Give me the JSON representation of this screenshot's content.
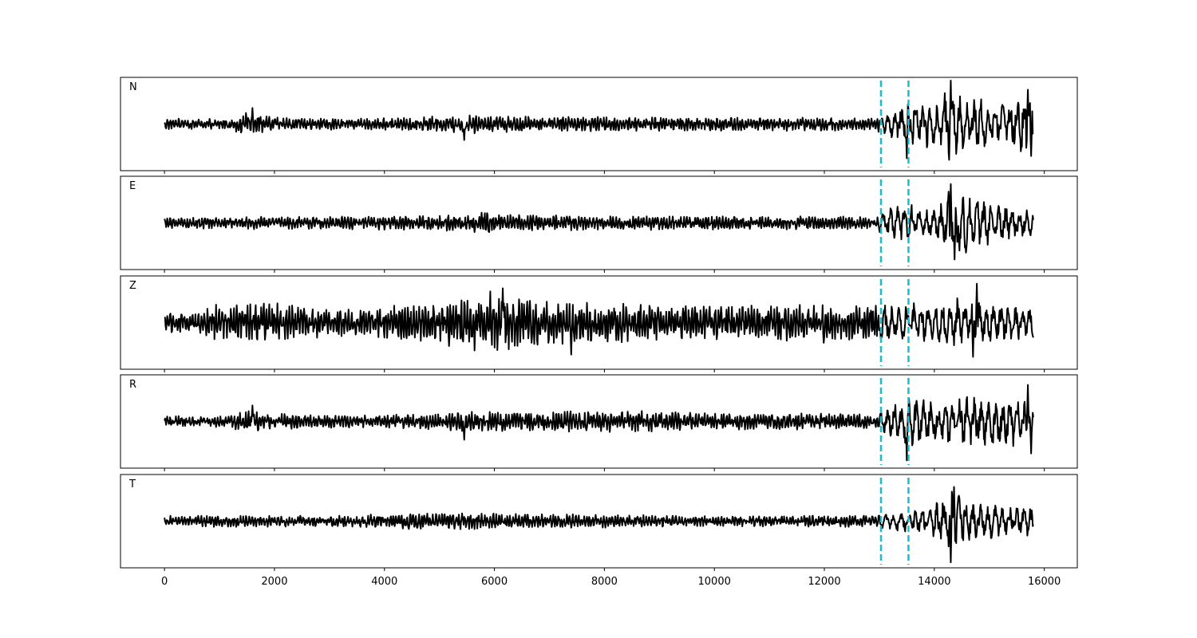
{
  "chart_data": {
    "type": "line",
    "xlim": [
      -800,
      16600
    ],
    "ylim": [
      -1.0,
      1.0
    ],
    "x_ticks": [
      0,
      2000,
      4000,
      6000,
      8000,
      10000,
      12000,
      14000,
      16000
    ],
    "x_tick_labels": [
      "0",
      "2000",
      "4000",
      "6000",
      "8000",
      "10000",
      "12000",
      "14000",
      "16000"
    ],
    "x_range": [
      0,
      15800
    ],
    "markers": [
      13030,
      13530
    ],
    "marker_color": "#17becf",
    "trace_color": "#000000",
    "grid": false,
    "panels": [
      {
        "label": "N",
        "envelope": [
          [
            0,
            0.12
          ],
          [
            1200,
            0.12
          ],
          [
            1400,
            0.22
          ],
          [
            1600,
            0.28
          ],
          [
            1800,
            0.18
          ],
          [
            2400,
            0.13
          ],
          [
            3500,
            0.13
          ],
          [
            4500,
            0.16
          ],
          [
            5500,
            0.22
          ],
          [
            6200,
            0.18
          ],
          [
            8000,
            0.16
          ],
          [
            10000,
            0.16
          ],
          [
            12000,
            0.16
          ],
          [
            12900,
            0.14
          ],
          [
            13100,
            0.22
          ],
          [
            13400,
            0.45
          ],
          [
            13600,
            0.55
          ],
          [
            14000,
            0.5
          ],
          [
            14300,
            0.85
          ],
          [
            14600,
            0.55
          ],
          [
            15000,
            0.55
          ],
          [
            15400,
            0.5
          ],
          [
            15700,
            0.75
          ],
          [
            15800,
            0.7
          ]
        ],
        "spikes": [
          [
            1600,
            0.35
          ],
          [
            5450,
            -0.35
          ],
          [
            13500,
            -0.75
          ],
          [
            14300,
            0.95
          ],
          [
            15700,
            0.75
          ],
          [
            15760,
            -0.7
          ]
        ]
      },
      {
        "label": "E",
        "envelope": [
          [
            0,
            0.12
          ],
          [
            1500,
            0.14
          ],
          [
            3000,
            0.14
          ],
          [
            4500,
            0.17
          ],
          [
            5500,
            0.18
          ],
          [
            5900,
            0.26
          ],
          [
            6200,
            0.18
          ],
          [
            8000,
            0.16
          ],
          [
            10000,
            0.15
          ],
          [
            12000,
            0.15
          ],
          [
            12900,
            0.14
          ],
          [
            13200,
            0.35
          ],
          [
            13500,
            0.42
          ],
          [
            14000,
            0.28
          ],
          [
            14300,
            0.85
          ],
          [
            14500,
            0.7
          ],
          [
            15000,
            0.5
          ],
          [
            15400,
            0.4
          ],
          [
            15800,
            0.3
          ]
        ],
        "spikes": [
          [
            14300,
            0.85
          ],
          [
            14370,
            -0.8
          ]
        ]
      },
      {
        "label": "Z",
        "envelope": [
          [
            0,
            0.22
          ],
          [
            600,
            0.3
          ],
          [
            1000,
            0.45
          ],
          [
            1500,
            0.4
          ],
          [
            2200,
            0.45
          ],
          [
            3000,
            0.3
          ],
          [
            4000,
            0.35
          ],
          [
            5000,
            0.5
          ],
          [
            5500,
            0.6
          ],
          [
            6000,
            0.7
          ],
          [
            6500,
            0.55
          ],
          [
            7000,
            0.5
          ],
          [
            8000,
            0.45
          ],
          [
            9000,
            0.4
          ],
          [
            10000,
            0.38
          ],
          [
            11000,
            0.4
          ],
          [
            12000,
            0.45
          ],
          [
            13000,
            0.4
          ],
          [
            14000,
            0.45
          ],
          [
            14500,
            0.55
          ],
          [
            15000,
            0.5
          ],
          [
            15500,
            0.4
          ],
          [
            15800,
            0.35
          ]
        ],
        "spikes": [
          [
            6150,
            0.75
          ],
          [
            7400,
            -0.7
          ],
          [
            14770,
            0.85
          ],
          [
            14700,
            -0.75
          ]
        ]
      },
      {
        "label": "R",
        "envelope": [
          [
            0,
            0.12
          ],
          [
            1200,
            0.13
          ],
          [
            1500,
            0.28
          ],
          [
            1800,
            0.2
          ],
          [
            2500,
            0.16
          ],
          [
            4000,
            0.14
          ],
          [
            5500,
            0.22
          ],
          [
            6500,
            0.22
          ],
          [
            7500,
            0.24
          ],
          [
            8500,
            0.24
          ],
          [
            10000,
            0.18
          ],
          [
            12000,
            0.18
          ],
          [
            12900,
            0.15
          ],
          [
            13200,
            0.35
          ],
          [
            13500,
            0.55
          ],
          [
            14000,
            0.45
          ],
          [
            14500,
            0.55
          ],
          [
            15000,
            0.6
          ],
          [
            15500,
            0.55
          ],
          [
            15800,
            0.5
          ]
        ],
        "spikes": [
          [
            1600,
            0.35
          ],
          [
            5450,
            -0.4
          ],
          [
            13500,
            -0.85
          ],
          [
            15700,
            0.8
          ],
          [
            15760,
            -0.7
          ]
        ]
      },
      {
        "label": "T",
        "envelope": [
          [
            0,
            0.12
          ],
          [
            1500,
            0.13
          ],
          [
            3000,
            0.12
          ],
          [
            4500,
            0.18
          ],
          [
            6000,
            0.18
          ],
          [
            8000,
            0.15
          ],
          [
            10000,
            0.12
          ],
          [
            12000,
            0.13
          ],
          [
            12900,
            0.13
          ],
          [
            13200,
            0.2
          ],
          [
            13600,
            0.25
          ],
          [
            14000,
            0.4
          ],
          [
            14300,
            0.8
          ],
          [
            14600,
            0.45
          ],
          [
            15000,
            0.4
          ],
          [
            15500,
            0.35
          ],
          [
            15800,
            0.3
          ]
        ],
        "spikes": [
          [
            14300,
            -0.9
          ],
          [
            14360,
            0.75
          ]
        ]
      }
    ]
  }
}
